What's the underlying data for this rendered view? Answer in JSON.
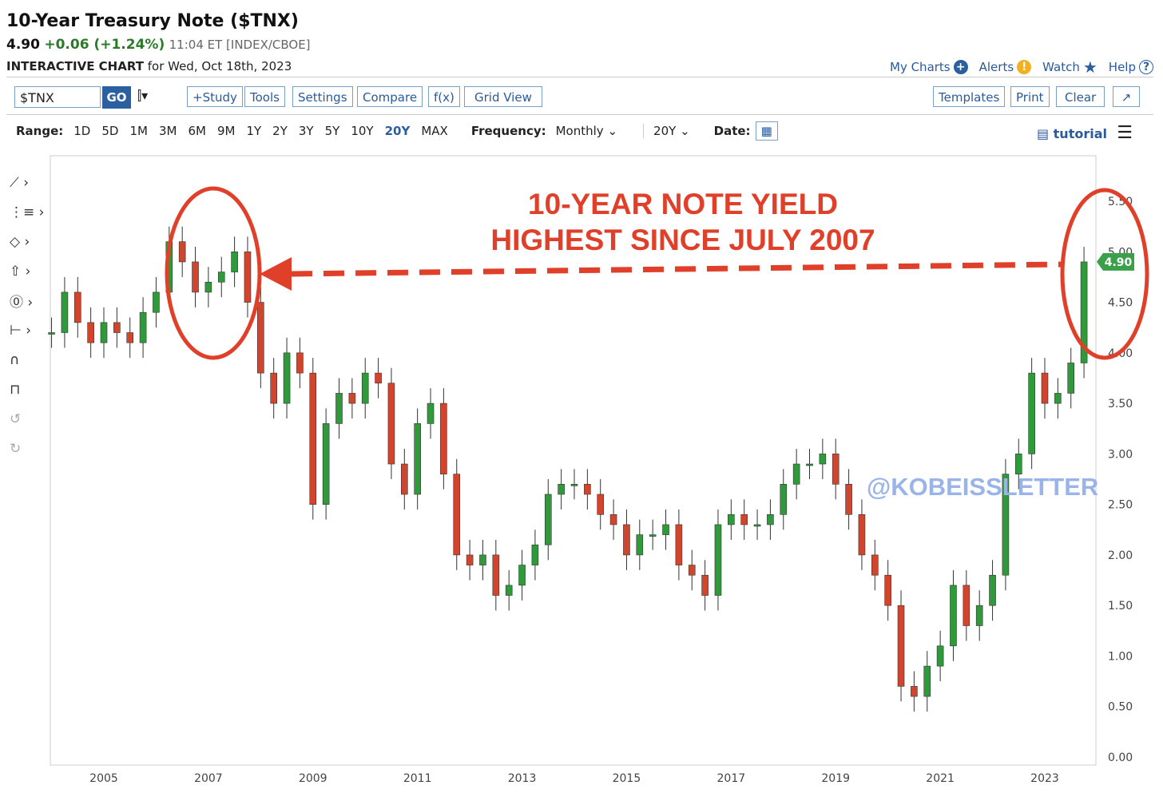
{
  "header": {
    "title": "10-Year Treasury Note ($TNX)",
    "last": "4.90",
    "change": "+0.06 (+1.24%)",
    "meta": "11:04 ET [INDEX/CBOE]",
    "chart_label": "INTERACTIVE CHART",
    "chart_date": "for Wed, Oct 18th, 2023"
  },
  "toplinks": {
    "my_charts": "My Charts",
    "alerts": "Alerts",
    "watch": "Watch",
    "help": "Help"
  },
  "toolbar": {
    "symbol": "$TNX",
    "go": "GO",
    "study": "+Study",
    "tools": "Tools",
    "settings": "Settings",
    "compare": "Compare",
    "fx": "f(x)",
    "grid_view": "Grid View",
    "templates": "Templates",
    "print": "Print",
    "clear": "Clear"
  },
  "rangebar": {
    "range_label": "Range:",
    "ranges": [
      "1D",
      "5D",
      "1M",
      "3M",
      "6M",
      "9M",
      "1Y",
      "2Y",
      "3Y",
      "5Y",
      "10Y",
      "20Y",
      "MAX"
    ],
    "active": "20Y",
    "frequency_label": "Frequency:",
    "frequency": "Monthly",
    "period": "20Y",
    "date_label": "Date:",
    "tutorial": "tutorial"
  },
  "annotation": {
    "line1": "10-YEAR NOTE YIELD",
    "line2": "HIGHEST SINCE JULY 2007",
    "watermark": "@KOBEISSLETTER"
  },
  "colors": {
    "up": "#2e9a3a",
    "down": "#d2452c",
    "annotation": "#e0402a",
    "last_price_tag": "#3aa14a"
  },
  "chart_data": {
    "type": "line",
    "title": "",
    "xlabel": "",
    "ylabel": "",
    "x_ticks": [
      "2005",
      "2007",
      "2009",
      "2011",
      "2013",
      "2015",
      "2017",
      "2019",
      "2021",
      "2023"
    ],
    "y_ticks": [
      "0.00",
      "0.50",
      "1.00",
      "1.50",
      "2.00",
      "2.50",
      "3.00",
      "3.50",
      "4.00",
      "4.50",
      "5.00",
      "5.50"
    ],
    "ylim": [
      0,
      5.5
    ],
    "xlim": [
      2004.0,
      2024.0
    ],
    "last_value_label": "4.90",
    "series": [
      {
        "name": "",
        "x": [
          2004.0,
          2004.25,
          2004.5,
          2004.75,
          2005.0,
          2005.25,
          2005.5,
          2005.75,
          2006.0,
          2006.25,
          2006.5,
          2006.75,
          2007.0,
          2007.25,
          2007.5,
          2007.75,
          2008.0,
          2008.25,
          2008.5,
          2008.75,
          2009.0,
          2009.25,
          2009.5,
          2009.75,
          2010.0,
          2010.25,
          2010.5,
          2010.75,
          2011.0,
          2011.25,
          2011.5,
          2011.75,
          2012.0,
          2012.25,
          2012.5,
          2012.75,
          2013.0,
          2013.25,
          2013.5,
          2013.75,
          2014.0,
          2014.25,
          2014.5,
          2014.75,
          2015.0,
          2015.25,
          2015.5,
          2015.75,
          2016.0,
          2016.25,
          2016.5,
          2016.75,
          2017.0,
          2017.25,
          2017.5,
          2017.75,
          2018.0,
          2018.25,
          2018.5,
          2018.75,
          2019.0,
          2019.25,
          2019.5,
          2019.75,
          2020.0,
          2020.25,
          2020.5,
          2020.75,
          2021.0,
          2021.25,
          2021.5,
          2021.75,
          2022.0,
          2022.25,
          2022.5,
          2022.75,
          2023.0,
          2023.25,
          2023.5,
          2023.75
        ],
        "values": [
          4.2,
          4.6,
          4.3,
          4.1,
          4.3,
          4.2,
          4.1,
          4.4,
          4.6,
          5.1,
          4.9,
          4.6,
          4.7,
          4.8,
          5.0,
          4.5,
          3.8,
          3.5,
          4.0,
          3.8,
          2.5,
          3.3,
          3.6,
          3.5,
          3.8,
          3.7,
          2.9,
          2.6,
          3.3,
          3.5,
          2.8,
          2.0,
          1.9,
          2.0,
          1.6,
          1.7,
          1.9,
          2.1,
          2.6,
          2.7,
          2.7,
          2.6,
          2.4,
          2.3,
          2.0,
          2.2,
          2.2,
          2.3,
          1.9,
          1.8,
          1.6,
          2.3,
          2.4,
          2.3,
          2.3,
          2.4,
          2.7,
          2.9,
          2.9,
          3.0,
          2.7,
          2.4,
          2.0,
          1.8,
          1.5,
          0.7,
          0.6,
          0.9,
          1.1,
          1.7,
          1.3,
          1.5,
          1.8,
          2.8,
          3.0,
          3.8,
          3.5,
          3.6,
          3.9,
          4.9
        ]
      }
    ]
  }
}
